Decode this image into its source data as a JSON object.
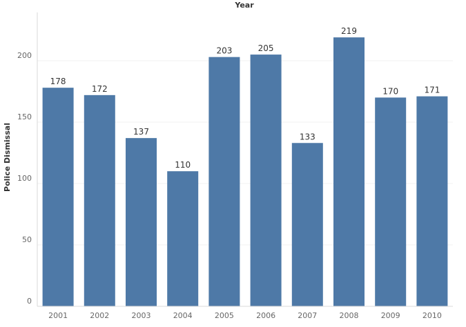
{
  "chart_data": {
    "type": "bar",
    "title": "Year",
    "xlabel": "",
    "ylabel": "Police Dismissal",
    "categories": [
      "2001",
      "2002",
      "2003",
      "2004",
      "2005",
      "2006",
      "2007",
      "2008",
      "2009",
      "2010"
    ],
    "values": [
      178,
      172,
      137,
      110,
      203,
      205,
      133,
      219,
      170,
      171
    ],
    "ylim": [
      0,
      230
    ],
    "yticks": [
      0,
      50,
      100,
      150,
      200
    ],
    "grid": true,
    "legend": "none",
    "bar_color": "#4e79a7"
  }
}
